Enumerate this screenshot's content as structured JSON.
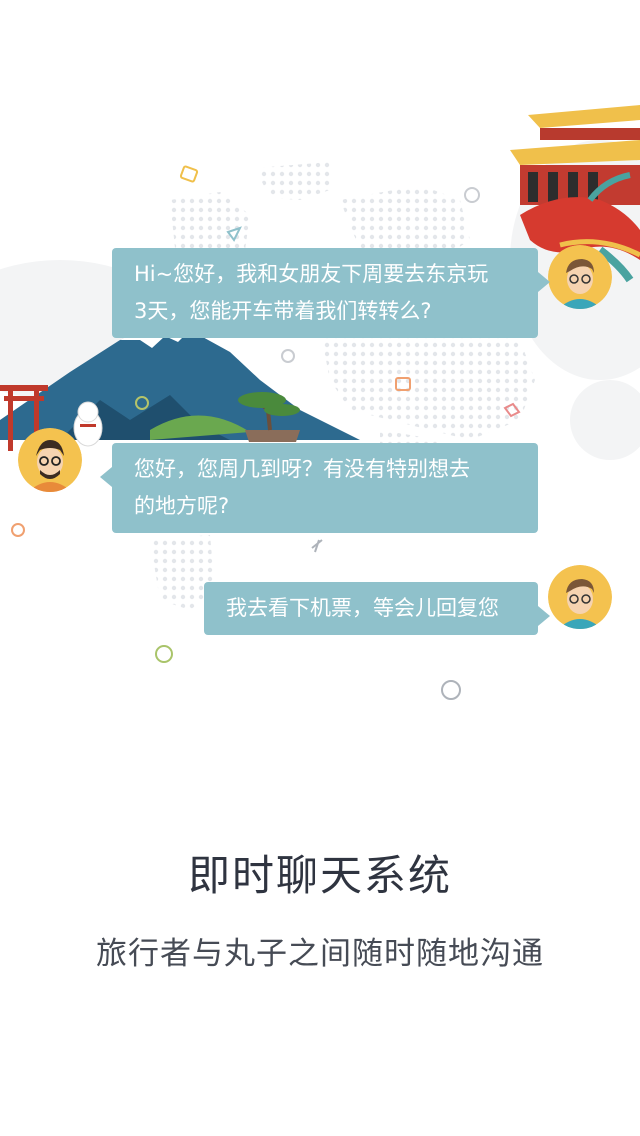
{
  "chat": {
    "messages": [
      {
        "side": "right",
        "line1": "Hi~您好，我和女朋友下周要去东京玩",
        "line2": "3天，您能开车带着我们转转么?"
      },
      {
        "side": "left",
        "line1": "您好，您周几到呀？有没有特别想去",
        "line2": "的地方呢?"
      },
      {
        "side": "right",
        "line1": "我去看下机票，等会儿回复您",
        "line2": ""
      }
    ]
  },
  "feature": {
    "title": "即时聊天系统",
    "subtitle": "旅行者与丸子之间随时随地沟通"
  },
  "colors": {
    "bubble": "#8fc1cb",
    "title": "#2f3440",
    "subtitle": "#464b55"
  },
  "icons": [
    "map-dots",
    "mount-fuji",
    "torii-gate",
    "lucky-cat",
    "bonsai",
    "chinese-palace",
    "dragon",
    "plane-icon",
    "location-pin-icon",
    "globe-icon",
    "chat-icon"
  ]
}
